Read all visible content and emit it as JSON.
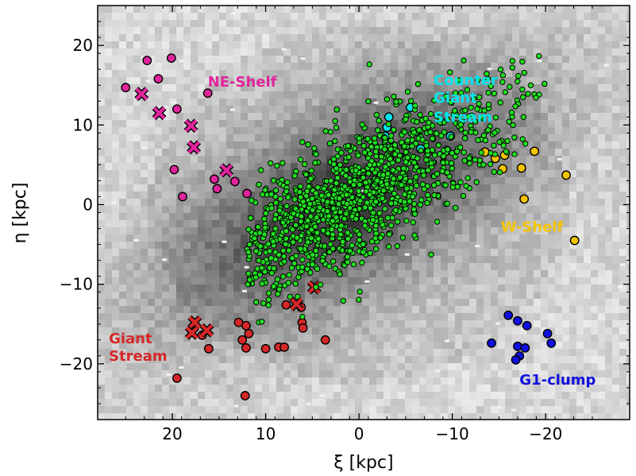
{
  "chart_data": {
    "type": "scatter",
    "xlabel": "ξ [kpc]",
    "ylabel": "η [kpc]",
    "xlim": [
      28,
      -29
    ],
    "ylim": [
      -27,
      25
    ],
    "x_ticks": [
      20,
      10,
      0,
      -10,
      -20
    ],
    "x_tick_labels": [
      "20",
      "10",
      "0",
      "−10",
      "−20"
    ],
    "y_ticks": [
      20,
      10,
      0,
      -10,
      -20
    ],
    "y_tick_labels": [
      "20",
      "10",
      "0",
      "−10",
      "−20"
    ],
    "grid": false,
    "background": "grayscale stellar density map",
    "annotations": [
      {
        "text": "NE-Shelf",
        "x": 16.2,
        "y": 14.8,
        "color": "#e0259c"
      },
      {
        "text": "Counter",
        "x": -8.0,
        "y": 15.0,
        "color": "#00e5ee"
      },
      {
        "text": "Giant",
        "x": -8.0,
        "y": 12.8,
        "color": "#00e5ee"
      },
      {
        "text": "Stream",
        "x": -8.0,
        "y": 10.4,
        "color": "#00e5ee"
      },
      {
        "text": "W-Shelf",
        "x": -15.2,
        "y": -3.4,
        "color": "#f5c400"
      },
      {
        "text": "Giant",
        "x": 26.8,
        "y": -17.4,
        "color": "#d62728"
      },
      {
        "text": "Stream",
        "x": 26.8,
        "y": -19.6,
        "color": "#d62728"
      },
      {
        "text": "G1-clump",
        "x": -17.2,
        "y": -22.6,
        "color": "#1010e0"
      }
    ],
    "series": [
      {
        "marker": "circle",
        "color": "#e0259c",
        "points": [
          [
            22.7,
            18.1
          ],
          [
            20.1,
            18.4
          ],
          [
            25.0,
            14.7
          ],
          [
            21.5,
            15.8
          ],
          [
            19.5,
            12.0
          ],
          [
            19.8,
            4.4
          ],
          [
            16.2,
            14.0
          ],
          [
            15.5,
            3.2
          ],
          [
            15.2,
            2.0
          ],
          [
            13.3,
            2.9
          ],
          [
            12.0,
            1.4
          ],
          [
            18.9,
            1.0
          ]
        ]
      },
      {
        "marker": "x",
        "color": "#e0259c",
        "points": [
          [
            23.3,
            13.9
          ],
          [
            21.4,
            11.5
          ],
          [
            18.0,
            9.9
          ],
          [
            17.7,
            7.2
          ],
          [
            14.2,
            4.3
          ]
        ]
      },
      {
        "marker": "circle",
        "color": "#00e5ee",
        "points": [
          [
            -3.2,
            11.0
          ],
          [
            -3.0,
            9.7
          ],
          [
            -2.8,
            8.6
          ],
          [
            -5.5,
            12.2
          ],
          [
            -6.6,
            7.0
          ],
          [
            -9.8,
            8.6
          ],
          [
            -9.4,
            6.8
          ]
        ]
      },
      {
        "marker": "circle",
        "color": "#f5c400",
        "points": [
          [
            -13.5,
            6.6
          ],
          [
            -14.6,
            5.8
          ],
          [
            -15.6,
            6.2
          ],
          [
            -15.4,
            4.5
          ],
          [
            -17.4,
            4.6
          ],
          [
            -18.8,
            6.7
          ],
          [
            -22.2,
            3.7
          ],
          [
            -17.7,
            0.7
          ],
          [
            -23.1,
            -4.5
          ]
        ]
      },
      {
        "marker": "circle",
        "color": "#d62728",
        "points": [
          [
            7.8,
            -12.6
          ],
          [
            6.2,
            -12.9
          ],
          [
            6.1,
            -14.8
          ],
          [
            6.0,
            -15.5
          ],
          [
            12.9,
            -14.8
          ],
          [
            12.1,
            -15.2
          ],
          [
            11.8,
            -16.2
          ],
          [
            12.5,
            -17.0
          ],
          [
            16.8,
            -16.4
          ],
          [
            16.1,
            -18.1
          ],
          [
            12.1,
            -18.0
          ],
          [
            10.0,
            -18.1
          ],
          [
            8.6,
            -17.9
          ],
          [
            8.0,
            -17.9
          ],
          [
            3.6,
            -17.0
          ],
          [
            19.5,
            -21.8
          ],
          [
            12.2,
            -24.0
          ]
        ]
      },
      {
        "marker": "x",
        "color": "#d62728",
        "points": [
          [
            4.8,
            -10.4
          ],
          [
            6.7,
            -12.5
          ],
          [
            17.6,
            -14.8
          ],
          [
            17.9,
            -16.1
          ],
          [
            16.3,
            -15.8
          ]
        ]
      },
      {
        "marker": "circle",
        "color": "#1010e0",
        "points": [
          [
            -14.2,
            -17.4
          ],
          [
            -16.0,
            -13.9
          ],
          [
            -17.0,
            -14.6
          ],
          [
            -18.0,
            -15.2
          ],
          [
            -17.0,
            -17.8
          ],
          [
            -17.8,
            -18.0
          ],
          [
            -20.2,
            -16.2
          ],
          [
            -20.6,
            -17.4
          ],
          [
            -17.2,
            -19.0
          ],
          [
            -16.8,
            -19.5
          ]
        ]
      },
      {
        "marker": "dot",
        "color": "#21e021",
        "generated": true,
        "count": 1180,
        "center": [
          1.5,
          0.5
        ],
        "major_axis_deg": -36,
        "major_sigma": 10.5,
        "minor_sigma": 3.4,
        "x_range": [
          12,
          -20
        ],
        "y_range": [
          -18,
          19
        ]
      }
    ]
  }
}
